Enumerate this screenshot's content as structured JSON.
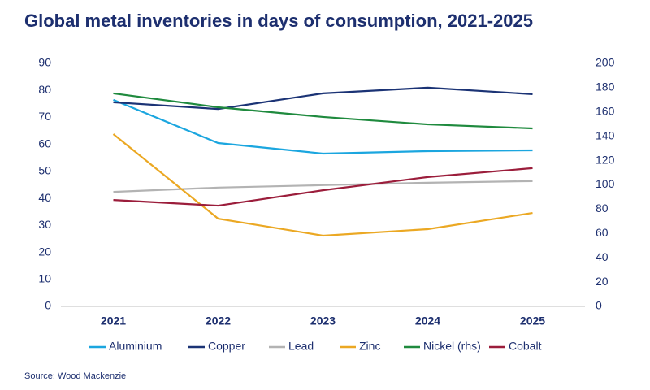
{
  "chart_data": {
    "type": "line",
    "title": "Global metal inventories in days of consumption, 2021-2025",
    "source": "Source: Wood Mackenzie",
    "categories": [
      "2021",
      "2022",
      "2023",
      "2024",
      "2025"
    ],
    "ylim": [
      0,
      90
    ],
    "yticks": [
      0,
      10,
      20,
      30,
      40,
      50,
      60,
      70,
      80,
      90
    ],
    "y2lim": [
      0,
      200
    ],
    "y2ticks": [
      0,
      20,
      40,
      60,
      80,
      100,
      120,
      140,
      160,
      180,
      200
    ],
    "grid": false,
    "legend": "bottom",
    "series": [
      {
        "name": "Aluminium",
        "color": "#1ba6df",
        "values": [
          76.5,
          60.5,
          56.6,
          57.5,
          57.8
        ]
      },
      {
        "name": "Copper",
        "color": "#1b3375",
        "values": [
          75.6,
          73.1,
          78.9,
          81,
          78.6
        ]
      },
      {
        "name": "Lead",
        "color": "#b3b3b3",
        "values": [
          42.4,
          44,
          44.9,
          45.8,
          46.4
        ]
      },
      {
        "name": "Zinc",
        "color": "#eba823",
        "values": [
          63.8,
          32.5,
          26.2,
          28.6,
          34.6
        ]
      },
      {
        "name": "Nickel (rhs)",
        "color": "#1f8a3e",
        "axis": "y2",
        "values": [
          175.3,
          163.9,
          155.9,
          149.8,
          146.5
        ]
      },
      {
        "name": "Cobalt",
        "color": "#9b1d3b",
        "values": [
          39.4,
          37.3,
          43,
          47.9,
          51.2
        ]
      }
    ]
  }
}
